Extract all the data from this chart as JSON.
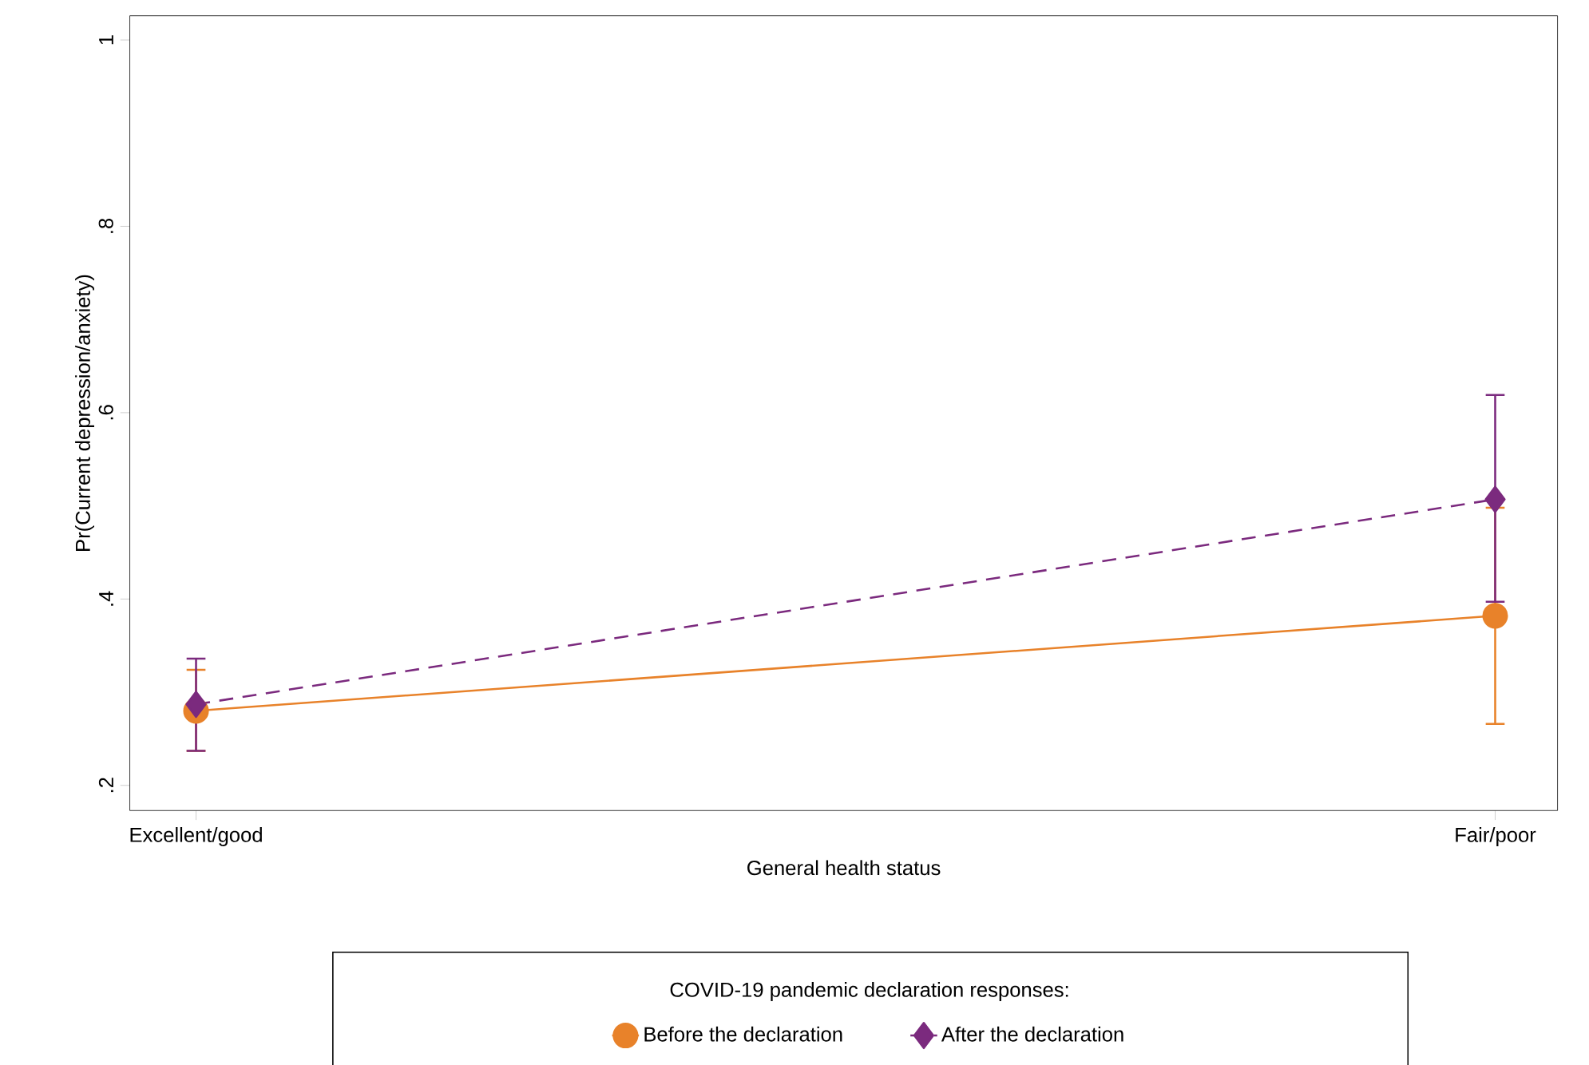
{
  "chart_data": {
    "type": "line",
    "xlabel": "General health status",
    "ylabel": "Pr(Current depression/anxiety)",
    "categories": [
      "Excellent/good",
      "Fair/poor"
    ],
    "ylim": [
      0.173,
      1.026
    ],
    "yticks": [
      {
        "value": 0.2,
        "label": ".2"
      },
      {
        "value": 0.4,
        "label": ".4"
      },
      {
        "value": 0.6,
        "label": ".6"
      },
      {
        "value": 0.8,
        "label": ".8"
      },
      1
    ],
    "legend": "bottom",
    "legend_title": "COVID-19 pandemic declaration responses:",
    "grid": false,
    "series": [
      {
        "name": "Before the declaration",
        "color": "#e8822a",
        "marker": "circle",
        "line_style": "solid",
        "values": [
          0.28,
          0.382
        ],
        "errors": [
          [
            0.237,
            0.324
          ],
          [
            0.266,
            0.498
          ]
        ]
      },
      {
        "name": "After the declaration",
        "color": "#7b2a7e",
        "marker": "diamond",
        "line_style": "dashed",
        "values": [
          0.287,
          0.507
        ],
        "errors": [
          [
            0.237,
            0.336
          ],
          [
            0.397,
            0.619
          ]
        ]
      }
    ]
  }
}
